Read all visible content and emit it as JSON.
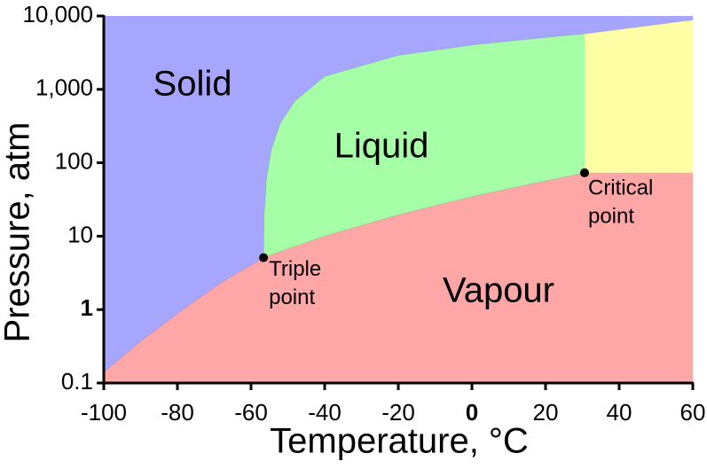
{
  "chart_data": {
    "type": "phase",
    "xlabel": "Temperature, °C",
    "ylabel": "Pressure, atm",
    "xlim": [
      -100,
      60
    ],
    "xticks": [
      -100,
      -80,
      -60,
      -40,
      -20,
      0,
      20,
      40,
      60
    ],
    "ylim": [
      0.1,
      10000
    ],
    "log_y": true,
    "yticks": [
      0.1,
      1,
      10,
      100,
      {
        "value": 1000,
        "label": "1,000"
      },
      {
        "value": 10000,
        "label": "10,000"
      }
    ],
    "bold_ticks": {
      "x": [
        0
      ],
      "y": [
        1
      ]
    },
    "regions": [
      {
        "name": "Solid",
        "color": "#a6a6ff"
      },
      {
        "name": "Liquid",
        "color": "#a6ffa6"
      },
      {
        "name": "Vapour",
        "color": "#ffa6a6"
      },
      {
        "color": "#ffffa6"
      }
    ],
    "sublimation": {
      "x": [
        -100,
        -90,
        -78.5,
        -70,
        -65,
        -60,
        -56.6
      ],
      "y": [
        0.14,
        0.37,
        1,
        2.0,
        2.9,
        4.0,
        5.1
      ]
    },
    "vaporization": {
      "x": [
        -56.6,
        -50,
        -40,
        -30,
        -20,
        -10,
        0,
        10,
        20,
        30.6
      ],
      "y": [
        5.1,
        6.7,
        10,
        14,
        19.5,
        26,
        34.5,
        44.5,
        56.5,
        73
      ]
    },
    "melting": {
      "x": [
        -56.6,
        -56.4,
        -55.8,
        -54.5,
        -52,
        -48,
        -40,
        -20,
        0,
        20,
        30.6,
        60
      ],
      "y": [
        5.1,
        20,
        60,
        150,
        350,
        700,
        1500,
        2900,
        4000,
        5100,
        5700,
        8800
      ]
    },
    "points": [
      {
        "label": [
          "Triple",
          "point"
        ],
        "x": -56.6,
        "y": 5.1
      },
      {
        "label": [
          "Critical",
          "point"
        ],
        "x": 30.6,
        "y": 73
      }
    ]
  }
}
